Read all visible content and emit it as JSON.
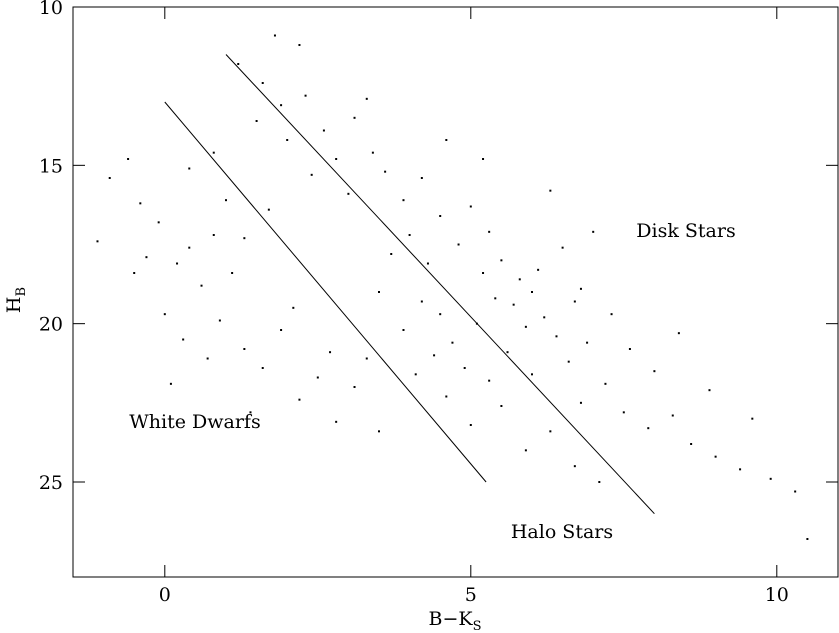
{
  "chart_data": {
    "type": "scatter",
    "x_label": {
      "text": "B−K",
      "subscript": "S"
    },
    "y_label": {
      "text": "H",
      "subscript": "B"
    },
    "xlim": [
      -1.5,
      11
    ],
    "ylim": [
      28,
      10
    ],
    "xticks": [
      0,
      5,
      10
    ],
    "yticks": [
      10,
      15,
      20,
      25
    ],
    "color": "#000000",
    "annotations": [
      "Disk Stars",
      "White Dwarfs",
      "Halo Stars"
    ],
    "lines": [
      {
        "x": [
          0,
          5.25
        ],
        "y": [
          13,
          25
        ]
      },
      {
        "x": [
          1,
          8
        ],
        "y": [
          11.5,
          26
        ]
      }
    ],
    "x": [
      1.2,
      1.6,
      1.9,
      2.3,
      1.5,
      2.0,
      2.6,
      2.8,
      3.1,
      3.4,
      2.4,
      3.0,
      3.6,
      3.9,
      4.2,
      4.5,
      4.0,
      3.7,
      4.3,
      4.8,
      5.0,
      5.3,
      5.5,
      5.8,
      6.0,
      5.7,
      6.2,
      5.9,
      6.4,
      6.1,
      5.4,
      5.1,
      4.7,
      4.4,
      4.9,
      5.3,
      5.6,
      6.6,
      6.9,
      7.2,
      6.8,
      7.5,
      7.9,
      8.3,
      8.6,
      9.0,
      9.4,
      9.9,
      10.3,
      10.5,
      6.3,
      5.9,
      6.7,
      7.1,
      5.5,
      4.6,
      4.1,
      3.9,
      4.2,
      3.5,
      6.5,
      6.8,
      7.3,
      7.6,
      8.0,
      7.0,
      5.2,
      4.6,
      3.3,
      2.2,
      1.8,
      6.3,
      8.4,
      8.9,
      9.6,
      5.0,
      6.0,
      5.2,
      4.5,
      6.7,
      -1.1,
      -0.9,
      -0.6,
      -0.4,
      -0.3,
      -0.1,
      0.0,
      0.2,
      0.4,
      0.6,
      0.8,
      0.3,
      0.9,
      1.3,
      1.1,
      1.6,
      1.9,
      2.2,
      2.5,
      2.1,
      1.4,
      0.7,
      0.4,
      0.8,
      1.0,
      1.3,
      2.7,
      3.1,
      3.5,
      2.8,
      3.3,
      -0.5,
      0.1,
      1.7
    ],
    "y": [
      11.8,
      12.4,
      13.1,
      12.8,
      13.6,
      14.2,
      13.9,
      14.8,
      13.5,
      14.6,
      15.3,
      15.9,
      15.2,
      16.1,
      15.4,
      16.6,
      17.2,
      17.8,
      18.1,
      17.5,
      16.3,
      17.1,
      18.0,
      18.6,
      19.0,
      19.4,
      19.8,
      20.1,
      20.4,
      18.3,
      19.2,
      20.0,
      20.6,
      21.0,
      21.4,
      21.8,
      20.9,
      21.2,
      20.6,
      21.9,
      22.5,
      22.8,
      23.3,
      22.9,
      23.8,
      24.2,
      24.6,
      24.9,
      25.3,
      26.8,
      23.4,
      24.0,
      24.5,
      25.0,
      22.6,
      22.3,
      21.6,
      20.2,
      19.3,
      19.0,
      17.6,
      18.9,
      19.7,
      20.8,
      21.5,
      17.1,
      14.8,
      14.2,
      12.9,
      11.2,
      10.9,
      15.8,
      20.3,
      22.1,
      23.0,
      23.2,
      21.6,
      18.4,
      19.7,
      19.3,
      17.4,
      15.4,
      14.8,
      16.2,
      17.9,
      16.8,
      19.7,
      18.1,
      17.6,
      18.8,
      17.2,
      20.5,
      19.9,
      20.8,
      18.4,
      21.4,
      20.2,
      22.4,
      21.7,
      19.5,
      22.8,
      21.1,
      15.1,
      14.6,
      16.1,
      17.3,
      20.9,
      22.0,
      23.4,
      23.1,
      21.1,
      18.4,
      21.9,
      16.4
    ]
  }
}
